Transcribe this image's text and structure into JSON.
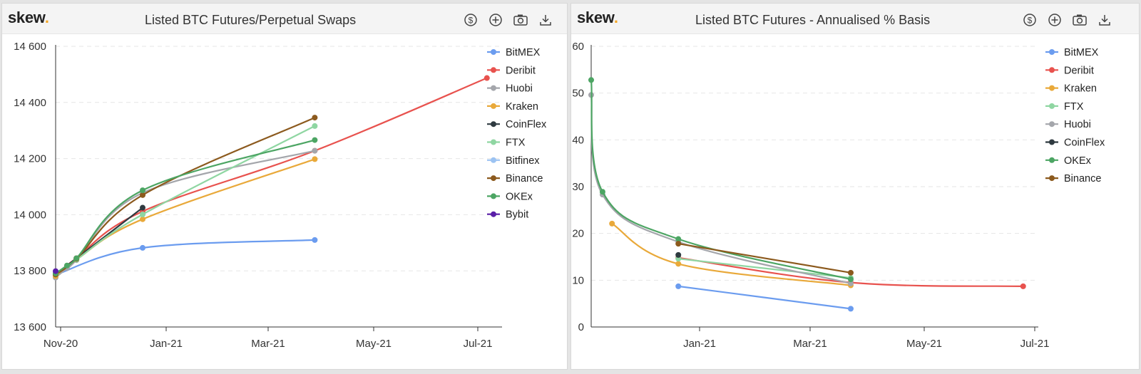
{
  "brand": {
    "name": "skew",
    "dot": "."
  },
  "icons": [
    "dollar-icon",
    "plus-icon",
    "camera-icon",
    "download-icon"
  ],
  "chart_data": [
    {
      "type": "line",
      "title": "Listed BTC Futures/Perpetual Swaps",
      "x_ticks": [
        "Nov-20",
        "Jan-21",
        "Mar-21",
        "May-21",
        "Jul-21"
      ],
      "y_ticks": [
        "14 600",
        "14 400",
        "14 200",
        "14 000",
        "13 800",
        "13 600"
      ],
      "xlim": [
        "2020-11-09",
        "2021-07-03"
      ],
      "ylim": [
        13600,
        14600
      ],
      "grid": "horizontal dashed",
      "legend_position": "top-right",
      "series": [
        {
          "name": "BitMEX",
          "color": "#6b9cef",
          "points": [
            [
              "2020-11-09",
              13786
            ],
            [
              "2020-12-25",
              13882
            ],
            [
              "2021-03-26",
              13910
            ]
          ]
        },
        {
          "name": "Deribit",
          "color": "#e8524e",
          "points": [
            [
              "2020-11-09",
              13784
            ],
            [
              "2020-11-15",
              13817
            ],
            [
              "2020-11-20",
              13845
            ],
            [
              "2020-12-25",
              14012
            ],
            [
              "2021-03-26",
              14228
            ],
            [
              "2021-06-25",
              14487
            ]
          ]
        },
        {
          "name": "Huobi",
          "color": "#a4a6ab",
          "points": [
            [
              "2020-11-09",
              13776
            ],
            [
              "2020-11-15",
              13810
            ],
            [
              "2020-11-20",
              13838
            ],
            [
              "2020-12-25",
              14078
            ],
            [
              "2021-03-26",
              14228
            ]
          ]
        },
        {
          "name": "Kraken",
          "color": "#e9a93a",
          "points": [
            [
              "2020-11-09",
              13781
            ],
            [
              "2020-11-20",
              13840
            ],
            [
              "2020-12-25",
              13984
            ],
            [
              "2021-03-26",
              14198
            ]
          ]
        },
        {
          "name": "CoinFlex",
          "color": "#2f3a40",
          "points": [
            [
              "2020-11-09",
              13788
            ],
            [
              "2020-12-25",
              14025
            ]
          ]
        },
        {
          "name": "FTX",
          "color": "#8fd6a2",
          "points": [
            [
              "2020-11-09",
              13787
            ],
            [
              "2020-11-20",
              13840
            ],
            [
              "2020-12-25",
              14001
            ],
            [
              "2021-03-26",
              14316
            ]
          ]
        },
        {
          "name": "Bitfinex",
          "color": "#9cc3f2",
          "points": []
        },
        {
          "name": "Binance",
          "color": "#8c5a1e",
          "points": [
            [
              "2020-11-09",
              13787
            ],
            [
              "2020-11-20",
              13843
            ],
            [
              "2020-12-25",
              14070
            ],
            [
              "2021-03-26",
              14346
            ]
          ]
        },
        {
          "name": "OKEx",
          "color": "#4ca563",
          "points": [
            [
              "2020-11-09",
              13791
            ],
            [
              "2020-11-15",
              13819
            ],
            [
              "2020-11-20",
              13845
            ],
            [
              "2020-12-25",
              14087
            ],
            [
              "2021-03-26",
              14266
            ]
          ]
        },
        {
          "name": "Bybit",
          "color": "#5a1ea8",
          "points": [
            [
              "2020-11-09",
              13799
            ]
          ]
        }
      ]
    },
    {
      "type": "line",
      "title": "Listed BTC Futures - Annualised % Basis",
      "x_ticks": [
        "Jan-21",
        "Mar-21",
        "May-21",
        "Jul-21"
      ],
      "y_ticks": [
        "60",
        "50",
        "40",
        "30",
        "20",
        "10",
        "0"
      ],
      "xlim": [
        "2020-11-09",
        "2021-07-03"
      ],
      "ylim": [
        0,
        60
      ],
      "grid": "horizontal dashed",
      "legend_position": "top-right",
      "series": [
        {
          "name": "BitMEX",
          "color": "#6b9cef",
          "points": [
            [
              "2020-12-25",
              8.7
            ],
            [
              "2021-03-26",
              3.9
            ]
          ]
        },
        {
          "name": "Deribit",
          "color": "#e8524e",
          "points": [
            [
              "2020-12-25",
              14.8
            ],
            [
              "2021-03-26",
              9.5
            ],
            [
              "2021-06-25",
              8.7
            ]
          ]
        },
        {
          "name": "Kraken",
          "color": "#e9a93a",
          "points": [
            [
              "2020-11-20",
              22.1
            ],
            [
              "2020-12-25",
              13.5
            ],
            [
              "2021-03-26",
              8.9
            ]
          ]
        },
        {
          "name": "FTX",
          "color": "#8fd6a2",
          "points": [
            [
              "2020-12-25",
              14.6
            ],
            [
              "2021-03-26",
              10.5
            ]
          ]
        },
        {
          "name": "Huobi",
          "color": "#a4a6ab",
          "points": [
            [
              "2020-11-09",
              49.6
            ],
            [
              "2020-11-15",
              28.3
            ],
            [
              "2020-12-25",
              18.2
            ],
            [
              "2021-03-26",
              9.3
            ]
          ]
        },
        {
          "name": "CoinFlex",
          "color": "#2f3a40",
          "points": [
            [
              "2020-12-25",
              15.4
            ]
          ]
        },
        {
          "name": "OKEx",
          "color": "#4ca563",
          "points": [
            [
              "2020-11-09",
              52.8
            ],
            [
              "2020-11-15",
              28.9
            ],
            [
              "2020-12-25",
              18.8
            ],
            [
              "2021-03-26",
              10.2
            ]
          ]
        },
        {
          "name": "Binance",
          "color": "#8c5a1e",
          "points": [
            [
              "2020-12-25",
              17.8
            ],
            [
              "2021-03-26",
              11.6
            ]
          ]
        }
      ]
    }
  ]
}
